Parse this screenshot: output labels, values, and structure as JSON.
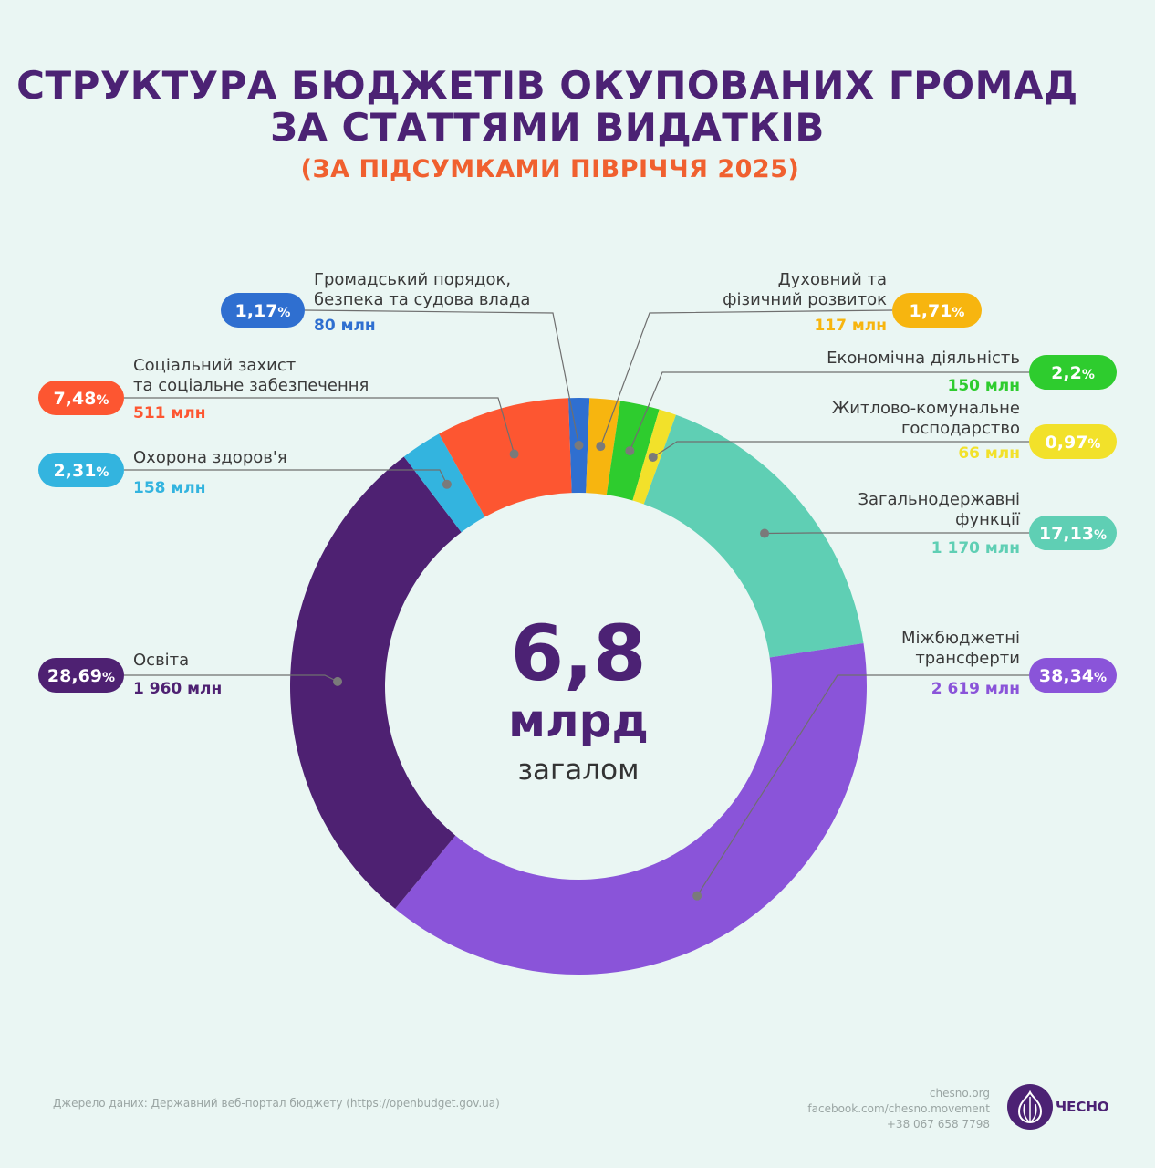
{
  "title_line1": "СТРУКТУРА БЮДЖЕТІВ ОКУПОВАНИХ ГРОМАД",
  "title_line2": "ЗА СТАТТЯМИ ВИДАТКІВ",
  "subtitle": "(ЗА ПІДСУМКАМИ ПІВРІЧЧЯ 2025)",
  "center": {
    "value": "6,8",
    "unit": "млрд",
    "caption": "загалом"
  },
  "chart_data": {
    "type": "pie",
    "variant": "donut",
    "title": "СТРУКТУРА БЮДЖЕТІВ ОКУПОВАНИХ ГРОМАД ЗА СТАТТЯМИ ВИДАТКІВ",
    "subtitle": "(ЗА ПІДСУМКАМИ ПІВРІЧЧЯ 2025)",
    "total_label": "6,8 млрд",
    "slices": [
      {
        "key": "public-order",
        "name": [
          "Громадський порядок,",
          "безпека та судова влада"
        ],
        "percent": 1.17,
        "percent_label": "1,17",
        "amount": "80 млн",
        "color": "#2f6fd0"
      },
      {
        "key": "spiritual",
        "name": [
          "Духовний та",
          "фізичний розвиток"
        ],
        "percent": 1.71,
        "percent_label": "1,71",
        "amount": "117 млн",
        "color": "#f7b50f"
      },
      {
        "key": "economic",
        "name": [
          "Економічна діяльність"
        ],
        "percent": 2.2,
        "percent_label": "2,2",
        "amount": "150 млн",
        "color": "#2ecc2e"
      },
      {
        "key": "housing",
        "name": [
          "Житлово-комунальне",
          "господарство"
        ],
        "percent": 0.97,
        "percent_label": "0,97",
        "amount": "66 млн",
        "color": "#f2e12a"
      },
      {
        "key": "general",
        "name": [
          "Загальнодержавні",
          "функції"
        ],
        "percent": 17.13,
        "percent_label": "17,13",
        "amount": "1 170 млн",
        "color": "#5fcfb4"
      },
      {
        "key": "transfers",
        "name": [
          "Міжбюджетні",
          "трансферти"
        ],
        "percent": 38.34,
        "percent_label": "38,34",
        "amount": "2 619 млн",
        "color": "#8a54d9"
      },
      {
        "key": "education",
        "name": [
          "Освіта"
        ],
        "percent": 28.69,
        "percent_label": "28,69",
        "amount": "1 960 млн",
        "color": "#4e2172"
      },
      {
        "key": "health",
        "name": [
          "Охорона здоров'я"
        ],
        "percent": 2.31,
        "percent_label": "2,31",
        "amount": "158 млн",
        "color": "#33b4df"
      },
      {
        "key": "social",
        "name": [
          "Соціальний захист",
          "та соціальне забезпечення"
        ],
        "percent": 7.48,
        "percent_label": "7,48",
        "amount": "511 млн",
        "color": "#fd5631"
      }
    ]
  },
  "footer": {
    "source": "Джерело даних: Державний веб-портал бюджету (https://openbudget.gov.ua)",
    "site": "chesno.org",
    "facebook": "facebook.com/chesno.movement",
    "phone": "+38 067 658 7798",
    "brand": "ЧЕСНО"
  }
}
